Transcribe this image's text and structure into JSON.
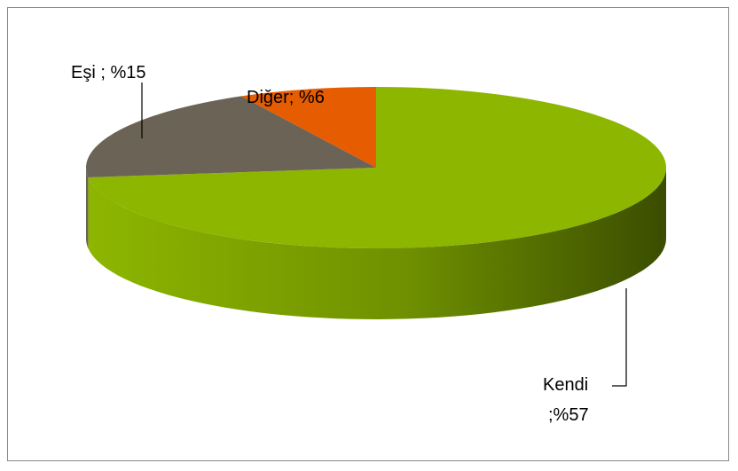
{
  "chart_data": {
    "type": "pie",
    "three_d": true,
    "values": [
      57,
      15,
      6
    ],
    "value_labels": [
      [
        "Kendi",
        ";%57"
      ],
      [
        "Eşi ; %15"
      ],
      [
        "Diğer; %6"
      ]
    ],
    "colors": [
      "#8db600",
      "#6b6356",
      "#e65c00"
    ]
  }
}
